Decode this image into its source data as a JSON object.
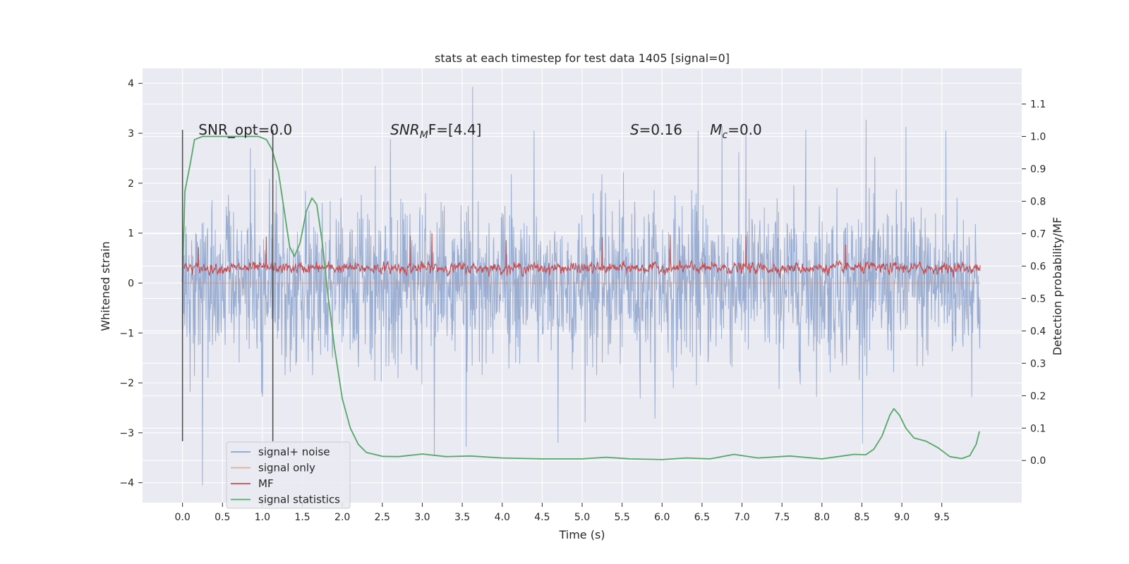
{
  "chart_data": {
    "type": "line",
    "title": "stats at each timestep for test data 1405 [signal=0]",
    "xlabel": "Time (s)",
    "ylabel": "Whitened strain",
    "y2label": "Detection probability/MF",
    "xlim": [
      -0.5,
      10.5
    ],
    "ylim": [
      -4.4,
      4.3
    ],
    "y2lim": [
      -0.13,
      1.21
    ],
    "x_ticks": [
      "0.0",
      "0.5",
      "1.0",
      "1.5",
      "2.0",
      "2.5",
      "3.0",
      "3.5",
      "4.0",
      "4.5",
      "5.0",
      "5.5",
      "6.0",
      "6.5",
      "7.0",
      "7.5",
      "8.0",
      "8.5",
      "9.0",
      "9.5"
    ],
    "y_ticks": [
      "−4",
      "−3",
      "−2",
      "−1",
      "0",
      "1",
      "2",
      "3",
      "4"
    ],
    "y2_ticks": [
      "0.0",
      "0.1",
      "0.2",
      "0.3",
      "0.4",
      "0.5",
      "0.6",
      "0.7",
      "0.8",
      "0.9",
      "1.0",
      "1.1"
    ],
    "grid": true,
    "legend_position": "lower-left",
    "annotations": [
      {
        "text": "SNR_opt=0.0",
        "x": 0.2,
        "y": 3.0
      },
      {
        "text": "SNR",
        "sub": "M",
        "tail": "F=[4.4]",
        "x": 2.6,
        "y": 3.0
      },
      {
        "text": "S",
        "tail": "=0.16",
        "x": 5.6,
        "y": 3.0
      },
      {
        "text": "M",
        "sub": "c",
        "tail": "=0.0",
        "x": 6.6,
        "y": 3.0
      }
    ],
    "vlines": [
      {
        "x": 0.0,
        "y": [
          -3.17,
          3.07
        ]
      },
      {
        "x": 1.13,
        "y": [
          -3.17,
          3.07
        ]
      }
    ],
    "series": [
      {
        "name": "signal+ noise",
        "color": "#4c72b0",
        "opacity": 0.5,
        "axis": "left",
        "note": "whitened noise time series, 10 s",
        "x_range": [
          0.0,
          9.98
        ],
        "peaks": [
          {
            "x": 0.0,
            "y": 2.68
          },
          {
            "x": 0.25,
            "y": -4.05
          },
          {
            "x": 0.85,
            "y": 2.7
          },
          {
            "x": 2.6,
            "y": 2.88
          },
          {
            "x": 3.15,
            "y": -3.45
          },
          {
            "x": 3.55,
            "y": -3.28
          },
          {
            "x": 3.63,
            "y": 3.93
          },
          {
            "x": 4.4,
            "y": 3.05
          },
          {
            "x": 4.7,
            "y": -3.2
          },
          {
            "x": 6.45,
            "y": 3.05
          },
          {
            "x": 6.75,
            "y": 3.15
          },
          {
            "x": 7.05,
            "y": 3.02
          },
          {
            "x": 7.8,
            "y": 3.07
          },
          {
            "x": 8.55,
            "y": 3.27
          },
          {
            "x": 9.05,
            "y": 3.13
          },
          {
            "x": 9.55,
            "y": 3.05
          }
        ]
      },
      {
        "name": "signal only",
        "color": "#dd8452",
        "opacity": 0.5,
        "axis": "left",
        "x": [
          0.0,
          9.98
        ],
        "y": [
          0.0,
          0.0
        ]
      },
      {
        "name": "MF",
        "color": "#c44e52",
        "axis": "left",
        "note": "matched-filter output, fluctuates about 0.3",
        "x_range": [
          0.0,
          9.98
        ],
        "band": [
          0.05,
          0.6
        ],
        "peaks": [
          {
            "x": 0.2,
            "y": 0.72
          },
          {
            "x": 1.05,
            "y": 0.93
          },
          {
            "x": 2.85,
            "y": 0.95
          },
          {
            "x": 3.12,
            "y": 1.0
          },
          {
            "x": 4.05,
            "y": 0.86
          },
          {
            "x": 5.25,
            "y": 0.92
          },
          {
            "x": 6.1,
            "y": 0.97
          },
          {
            "x": 7.05,
            "y": 0.95
          },
          {
            "x": 8.3,
            "y": 0.77
          }
        ]
      },
      {
        "name": "signal statistics",
        "color": "#55a868",
        "axis": "right",
        "x": [
          0.0,
          0.03,
          0.1,
          0.15,
          0.25,
          0.4,
          0.6,
          0.8,
          0.95,
          1.05,
          1.12,
          1.2,
          1.28,
          1.34,
          1.4,
          1.47,
          1.55,
          1.62,
          1.68,
          1.75,
          1.82,
          1.9,
          2.0,
          2.1,
          2.2,
          2.3,
          2.5,
          2.7,
          3.0,
          3.3,
          3.6,
          4.0,
          4.5,
          5.0,
          5.3,
          5.6,
          6.0,
          6.3,
          6.6,
          6.9,
          7.2,
          7.6,
          8.0,
          8.2,
          8.4,
          8.55,
          8.65,
          8.75,
          8.85,
          8.9,
          8.97,
          9.05,
          9.15,
          9.3,
          9.45,
          9.6,
          9.75,
          9.85,
          9.93,
          9.97
        ],
        "y": [
          0.55,
          0.83,
          0.92,
          0.99,
          1.0,
          1.0,
          1.0,
          1.0,
          1.0,
          0.99,
          0.96,
          0.89,
          0.76,
          0.66,
          0.63,
          0.67,
          0.77,
          0.81,
          0.79,
          0.67,
          0.51,
          0.35,
          0.19,
          0.1,
          0.05,
          0.025,
          0.013,
          0.012,
          0.02,
          0.012,
          0.014,
          0.008,
          0.005,
          0.005,
          0.01,
          0.005,
          0.003,
          0.008,
          0.005,
          0.019,
          0.008,
          0.014,
          0.005,
          0.012,
          0.019,
          0.018,
          0.035,
          0.075,
          0.14,
          0.16,
          0.14,
          0.1,
          0.07,
          0.06,
          0.04,
          0.012,
          0.006,
          0.015,
          0.05,
          0.09
        ]
      }
    ]
  }
}
